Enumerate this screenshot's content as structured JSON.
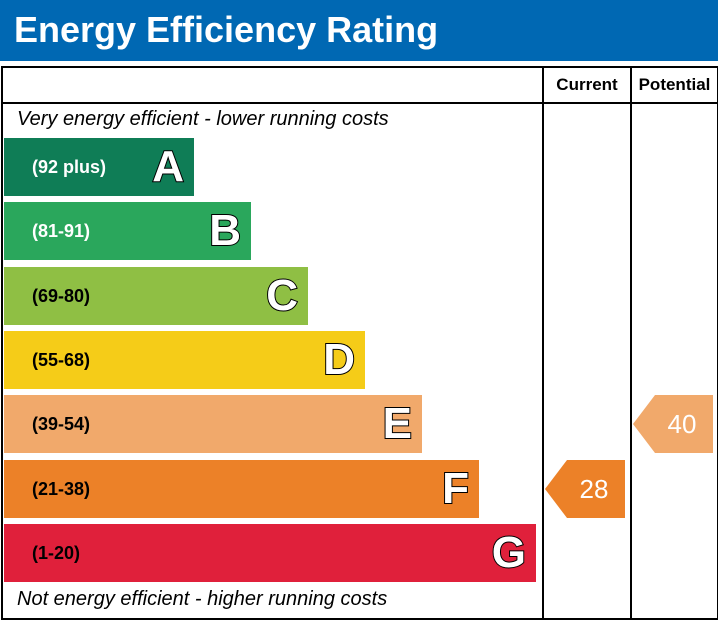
{
  "title": "Energy Efficiency Rating",
  "columns": {
    "current": "Current",
    "potential": "Potential"
  },
  "notes": {
    "top": "Very energy efficient - lower running costs",
    "bottom": "Not energy efficient - higher running costs"
  },
  "chart_data": {
    "type": "bar",
    "title": "Energy Efficiency Rating",
    "bands": [
      {
        "letter": "A",
        "range": "(92 plus)",
        "min": 92,
        "max": 100,
        "color": "#0f7d56",
        "range_color": "#ffffff"
      },
      {
        "letter": "B",
        "range": "(81-91)",
        "min": 81,
        "max": 91,
        "color": "#2aa75c",
        "range_color": "#ffffff"
      },
      {
        "letter": "C",
        "range": "(69-80)",
        "min": 69,
        "max": 80,
        "color": "#8fbf44",
        "range_color": "#000000"
      },
      {
        "letter": "D",
        "range": "(55-68)",
        "min": 55,
        "max": 68,
        "color": "#f5cc18",
        "range_color": "#000000"
      },
      {
        "letter": "E",
        "range": "(39-54)",
        "min": 39,
        "max": 54,
        "color": "#f1a96b",
        "range_color": "#000000"
      },
      {
        "letter": "F",
        "range": "(21-38)",
        "min": 21,
        "max": 38,
        "color": "#ec8128",
        "range_color": "#000000"
      },
      {
        "letter": "G",
        "range": "(1-20)",
        "min": 1,
        "max": 20,
        "color": "#e0203b",
        "range_color": "#000000"
      }
    ],
    "current": {
      "value": 28,
      "band": "F",
      "color": "#ec8128"
    },
    "potential": {
      "value": 40,
      "band": "E",
      "color": "#f1a96b"
    }
  }
}
